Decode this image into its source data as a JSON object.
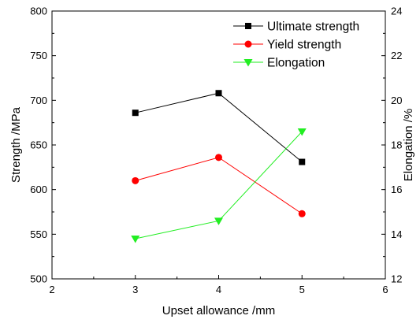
{
  "chart_data": {
    "type": "line",
    "xlabel": "Upset allowance /mm",
    "ylabel": "Strength /MPa",
    "y2label": "Elongation /%",
    "xlim": [
      2,
      6
    ],
    "ylim": [
      500,
      800
    ],
    "y2lim": [
      12,
      24
    ],
    "xticks": [
      "2",
      "3",
      "4",
      "5",
      "6"
    ],
    "yticks": [
      "500",
      "550",
      "600",
      "650",
      "700",
      "750",
      "800"
    ],
    "y2ticks": [
      "12",
      "14",
      "16",
      "18",
      "20",
      "22",
      "24"
    ],
    "grid": false,
    "legend_position": "top-right",
    "x": [
      3,
      4,
      5
    ],
    "series": [
      {
        "name": "Ultimate strength",
        "axis": "left",
        "values": [
          686,
          708,
          631
        ],
        "color": "#000000",
        "marker": "square"
      },
      {
        "name": "Yield strength",
        "axis": "left",
        "values": [
          610,
          636,
          573
        ],
        "color": "#ff0000",
        "marker": "circle"
      },
      {
        "name": "Elongation",
        "axis": "right",
        "values": [
          13.8,
          14.6,
          18.6
        ],
        "color": "#22ee22",
        "marker": "triangle-down"
      }
    ]
  }
}
